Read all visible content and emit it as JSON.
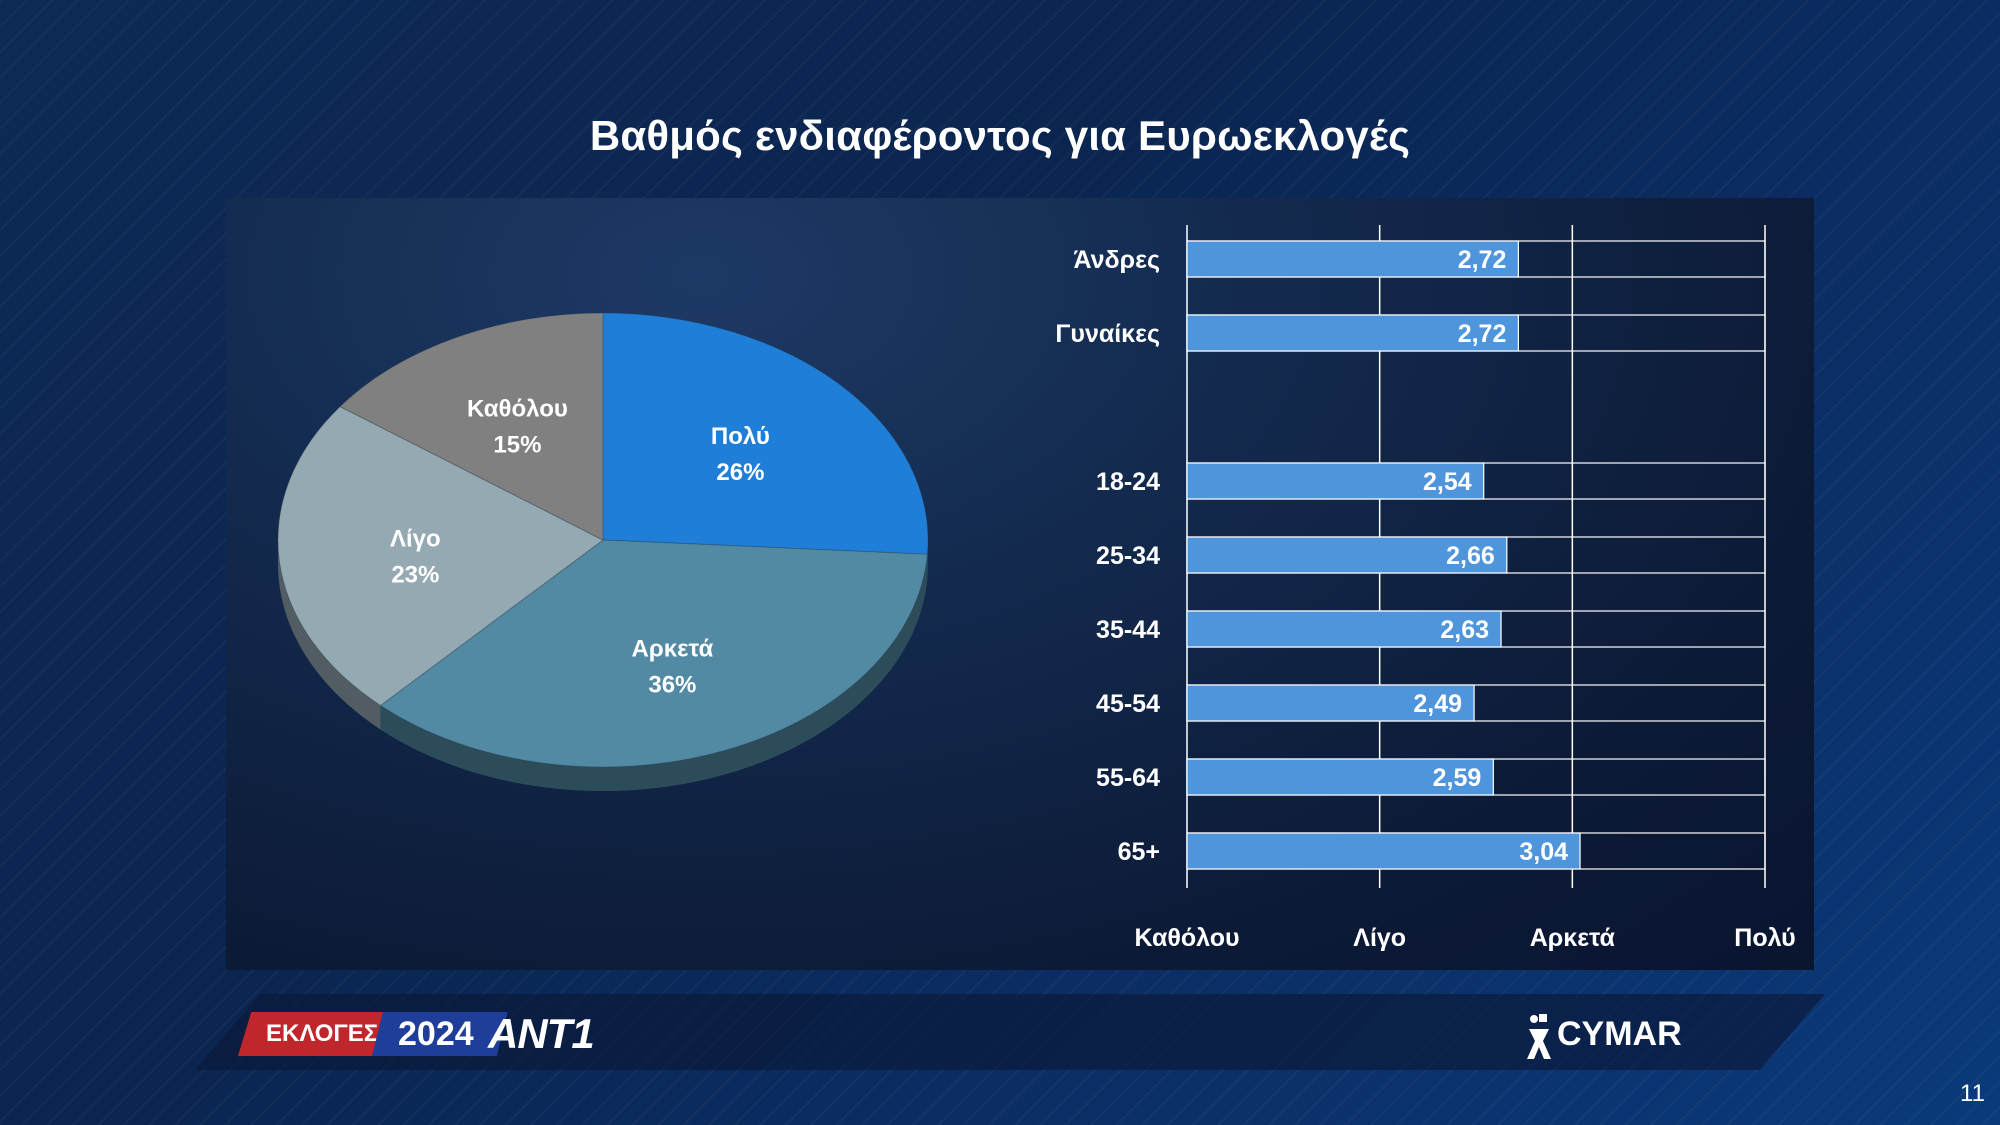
{
  "title": "Βαθμός ενδιαφέροντος για Ευρωεκλογές",
  "chart_data": [
    {
      "type": "pie",
      "slices": [
        {
          "label": "Πολύ",
          "value": 26,
          "value_label": "26%",
          "color": "#1f7fd8"
        },
        {
          "label": "Αρκετά",
          "value": 36,
          "value_label": "36%",
          "color": "#528aa4"
        },
        {
          "label": "Λίγο",
          "value": 23,
          "value_label": "23%",
          "color": "#94a9b2"
        },
        {
          "label": "Καθόλου",
          "value": 15,
          "value_label": "15%",
          "color": "#808080"
        }
      ]
    },
    {
      "type": "bar",
      "orientation": "horizontal",
      "categories": [
        "Άνδρες",
        "Γυναίκες",
        "",
        "18-24",
        "25-34",
        "35-44",
        "45-54",
        "55-64",
        "65+"
      ],
      "values": [
        2.72,
        2.72,
        null,
        2.54,
        2.66,
        2.63,
        2.49,
        2.59,
        3.04
      ],
      "value_labels": [
        "2,72",
        "2,72",
        "",
        "2,54",
        "2,66",
        "2,63",
        "2,49",
        "2,59",
        "3,04"
      ],
      "xlim": [
        1,
        4
      ],
      "x_tick_labels": [
        "Καθόλου",
        "Λίγο",
        "Αρκετά",
        "Πολύ"
      ],
      "bar_color": "#4f95dc",
      "grid": true
    }
  ],
  "footer": {
    "ekloges": "ΕΚΛΟΓΕΣ",
    "year": "2024",
    "channel": "ANT1",
    "pollster": "CYMAR"
  },
  "page_number": "11"
}
